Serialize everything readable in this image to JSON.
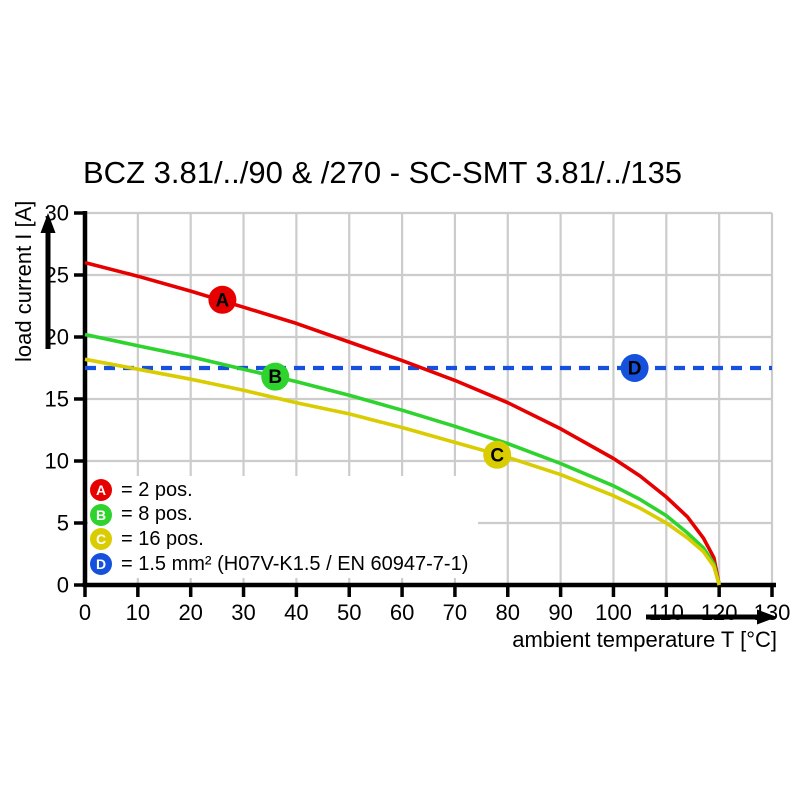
{
  "chart_data": {
    "type": "line",
    "title": "BCZ 3.81/../90 & /270 - SC-SMT 3.81/../135",
    "xlabel": "ambient temperature T [°C]",
    "ylabel": "load current I [A]",
    "xlim": [
      0,
      130
    ],
    "ylim": [
      0,
      30
    ],
    "x_ticks": [
      0,
      10,
      20,
      30,
      40,
      50,
      60,
      70,
      80,
      90,
      100,
      110,
      120,
      130
    ],
    "y_ticks": [
      0,
      5,
      10,
      15,
      20,
      25,
      30
    ],
    "grid": true,
    "legend_position": "lower left",
    "colors": {
      "grid": "#cccccc",
      "axis": "#000000",
      "background": "#ffffff"
    },
    "series": [
      {
        "name": "A",
        "label": "2 pos.",
        "color": "#e60000",
        "line_style": "solid",
        "marker": {
          "letter": "A",
          "at": [
            26,
            23
          ]
        },
        "points": [
          [
            0,
            26
          ],
          [
            10,
            24.9
          ],
          [
            20,
            23.7
          ],
          [
            30,
            22.4
          ],
          [
            40,
            21.1
          ],
          [
            50,
            19.6
          ],
          [
            60,
            18.1
          ],
          [
            70,
            16.5
          ],
          [
            80,
            14.7
          ],
          [
            90,
            12.6
          ],
          [
            100,
            10.2
          ],
          [
            105,
            8.8
          ],
          [
            110,
            7.1
          ],
          [
            114,
            5.5
          ],
          [
            117,
            3.8
          ],
          [
            119,
            2.2
          ],
          [
            120,
            0
          ]
        ]
      },
      {
        "name": "B",
        "label": "8 pos.",
        "color": "#2ed32e",
        "line_style": "solid",
        "marker": {
          "letter": "B",
          "at": [
            36,
            16.8
          ]
        },
        "points": [
          [
            0,
            20.2
          ],
          [
            10,
            19.3
          ],
          [
            20,
            18.4
          ],
          [
            30,
            17.4
          ],
          [
            40,
            16.4
          ],
          [
            50,
            15.3
          ],
          [
            60,
            14.1
          ],
          [
            70,
            12.8
          ],
          [
            80,
            11.4
          ],
          [
            90,
            9.8
          ],
          [
            100,
            8.0
          ],
          [
            105,
            6.9
          ],
          [
            110,
            5.6
          ],
          [
            114,
            4.2
          ],
          [
            117,
            3.0
          ],
          [
            119,
            1.7
          ],
          [
            120,
            0
          ]
        ]
      },
      {
        "name": "C",
        "label": "16 pos.",
        "color": "#d9cc00",
        "line_style": "solid",
        "marker": {
          "letter": "C",
          "at": [
            78,
            10.5
          ]
        },
        "points": [
          [
            0,
            18.2
          ],
          [
            10,
            17.4
          ],
          [
            20,
            16.6
          ],
          [
            30,
            15.7
          ],
          [
            40,
            14.7
          ],
          [
            50,
            13.8
          ],
          [
            60,
            12.7
          ],
          [
            70,
            11.5
          ],
          [
            80,
            10.3
          ],
          [
            90,
            8.9
          ],
          [
            100,
            7.2
          ],
          [
            105,
            6.2
          ],
          [
            110,
            5.0
          ],
          [
            114,
            3.8
          ],
          [
            117,
            2.7
          ],
          [
            119,
            1.5
          ],
          [
            120,
            0
          ]
        ]
      },
      {
        "name": "D",
        "label": "1.5 mm² (H07V-K1.5 / EN 60947-7-1)",
        "color": "#1551dd",
        "line_style": "dashed",
        "marker": {
          "letter": "D",
          "at": [
            104,
            17.5
          ]
        },
        "points": [
          [
            0,
            17.5
          ],
          [
            130,
            17.5
          ]
        ]
      }
    ],
    "legend": [
      {
        "marker": "A",
        "text": "= 2 pos."
      },
      {
        "marker": "B",
        "text": "= 8 pos."
      },
      {
        "marker": "C",
        "text": "= 16 pos."
      },
      {
        "marker": "D",
        "text": "= 1.5 mm² (H07V-K1.5 / EN 60947-7-1)"
      }
    ]
  }
}
